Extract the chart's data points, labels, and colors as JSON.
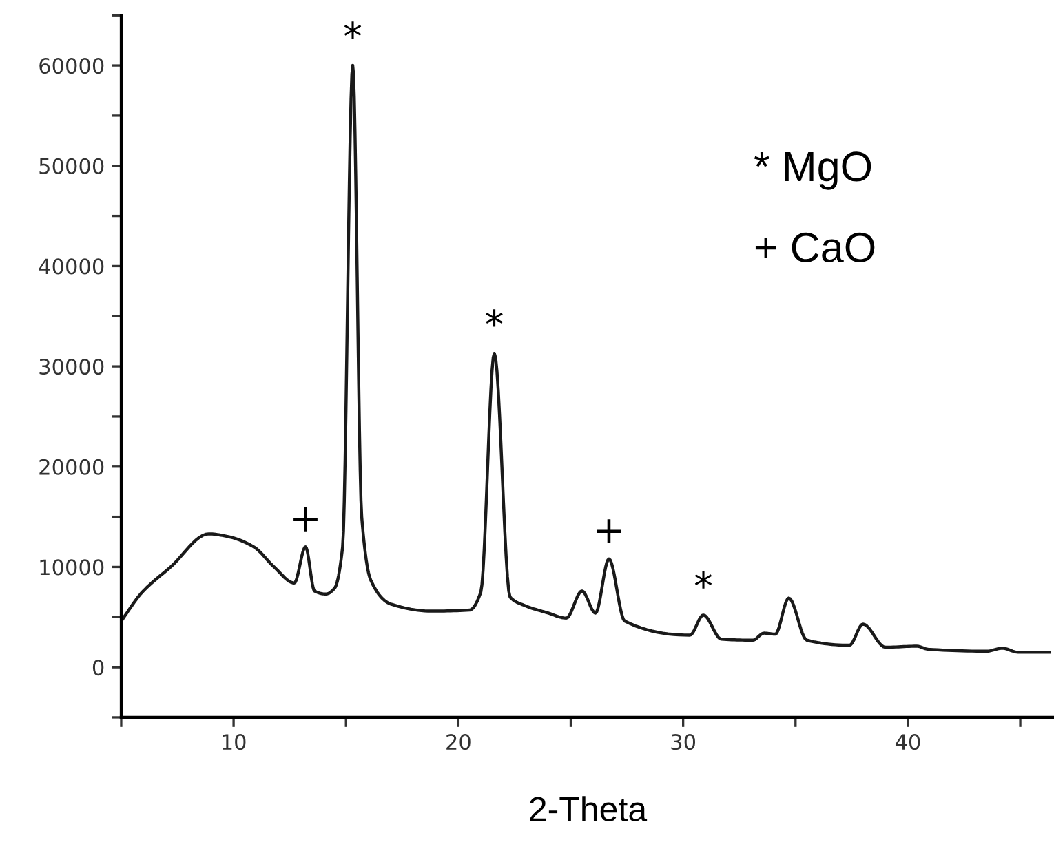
{
  "chart_data": {
    "type": "line",
    "xlabel": "2-Theta",
    "x": [
      5,
      5.9,
      7.2,
      8.9,
      9.8,
      10.9,
      11.8,
      12.7,
      13.2,
      13.6,
      14.1,
      14.5,
      14.85,
      15.3,
      15.7,
      16.1,
      17.0,
      18.8,
      20.5,
      21.0,
      21.6,
      22.3,
      22.9,
      24.0,
      24.8,
      25.5,
      26.1,
      26.7,
      27.4,
      30.3,
      30.9,
      31.7,
      33.1,
      33.6,
      34.1,
      34.7,
      35.5,
      37.4,
      38.0,
      39.0,
      40.4,
      40.9,
      43.5,
      44.2,
      44.9,
      46.3
    ],
    "series": [
      {
        "color": "#1a1a1a",
        "values": [
          4600,
          7400,
          10000,
          13300,
          13000,
          12000,
          10000,
          8400,
          12000,
          7600,
          7300,
          7900,
          12000,
          60000,
          15000,
          8700,
          6300,
          5600,
          5700,
          7500,
          31300,
          7000,
          6200,
          5400,
          4900,
          7600,
          5400,
          10800,
          4600,
          3200,
          5200,
          2800,
          2700,
          3400,
          3300,
          6900,
          2700,
          2200,
          4300,
          2000,
          2100,
          1800,
          1600,
          1900,
          1500,
          1500
        ]
      }
    ],
    "xlim": [
      5,
      46.5
    ],
    "ylim": [
      -5000,
      65000
    ],
    "xticks": [
      {
        "value": 5,
        "label": null
      },
      10,
      {
        "value": 15,
        "label": null
      },
      20,
      {
        "value": 25,
        "label": null
      },
      30,
      {
        "value": 35,
        "label": null
      },
      40,
      {
        "value": 45,
        "label": null
      }
    ],
    "yticks": [
      {
        "value": -5000,
        "label": null
      },
      0,
      {
        "value": 5000,
        "label": null
      },
      10000,
      {
        "value": 15000,
        "label": null
      },
      20000,
      {
        "value": 25000,
        "label": null
      },
      30000,
      {
        "value": 35000,
        "label": null
      },
      40000,
      {
        "value": 45000,
        "label": null
      },
      50000,
      {
        "value": 55000,
        "label": null
      },
      60000,
      {
        "value": 65000,
        "label": null
      }
    ],
    "grid": false,
    "marker": "none",
    "line_style": "solid",
    "annotations": [
      {
        "text": "*",
        "x": 15.3,
        "y": 60000
      },
      {
        "text": "+",
        "x": 13.2,
        "y": 12000
      },
      {
        "text": "*",
        "x": 21.6,
        "y": 31300
      },
      {
        "text": "+",
        "x": 26.7,
        "y": 10800
      },
      {
        "text": "*",
        "x": 30.9,
        "y": 5200
      },
      "* MgO",
      "+ CaO"
    ]
  }
}
